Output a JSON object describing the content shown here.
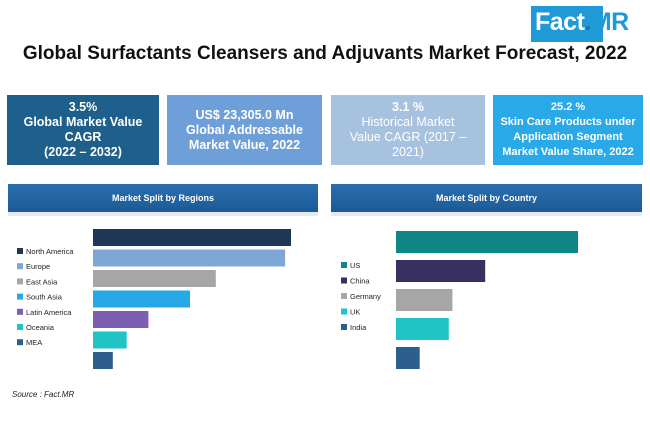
{
  "logo": {
    "part1": "Fact",
    "part2": ".",
    "part3": "MR"
  },
  "title": "Global Surfactants Cleansers and Adjuvants Market Forecast, 2022",
  "kpis": [
    {
      "value": "3.5%",
      "line1": "Global Market Value",
      "line2": "CAGR",
      "line3": "(2022 – 2032)"
    },
    {
      "value": "US$ 23,305.0 Mn",
      "line1": "Global Addressable",
      "line2": "Market Value, 2022"
    },
    {
      "value": "3.1 %",
      "line1": "Historical Market",
      "line2": "Value CAGR (2017 –",
      "line3": "2021)"
    },
    {
      "value": "25.2 %",
      "line1": "Skin Care Products under",
      "line2": "Application Segment",
      "line3": "Market Value Share, 2022"
    }
  ],
  "panels": {
    "regions_title": "Market Split by Regions",
    "country_title": "Market Split by Country"
  },
  "source": "Source : Fact.MR",
  "chart_data": [
    {
      "type": "bar",
      "orientation": "horizontal",
      "title": "Market Split by Regions",
      "categories": [
        "North America",
        "Europe",
        "East Asia",
        "South Asia",
        "Latin America",
        "Oceania",
        "MEA"
      ],
      "values": [
        100,
        97,
        62,
        49,
        28,
        17,
        10
      ],
      "colors": [
        "#1e3756",
        "#7ea6d6",
        "#a6a6a6",
        "#27a8e6",
        "#7b5fb0",
        "#21c4c4",
        "#2c5f8d"
      ],
      "legend_position": "left",
      "grid": false
    },
    {
      "type": "bar",
      "orientation": "horizontal",
      "title": "Market Split by Country",
      "categories": [
        "US",
        "China",
        "Germany",
        "UK",
        "India"
      ],
      "values": [
        100,
        49,
        31,
        29,
        13
      ],
      "colors": [
        "#0f8585",
        "#3a2f61",
        "#a6a6a6",
        "#21c4c4",
        "#2c5f8d"
      ],
      "legend_position": "left",
      "grid": false
    }
  ]
}
